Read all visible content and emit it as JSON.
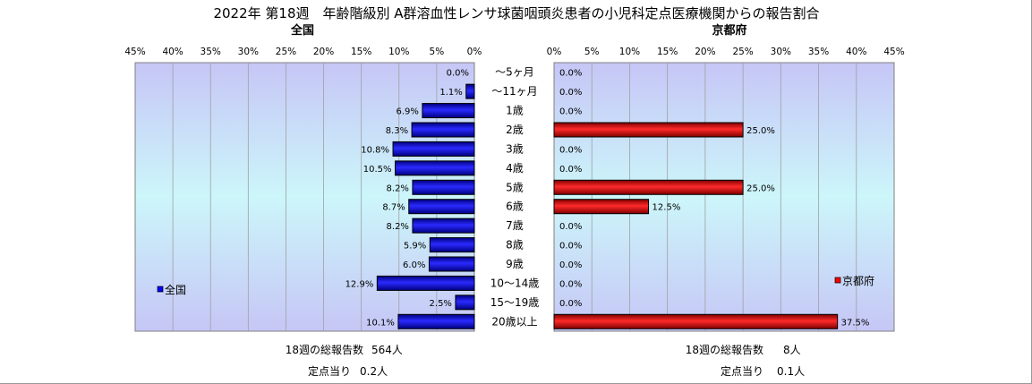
{
  "title": "2022年 第18週　年齢階級別 A群溶血性レンサ球菌咽頭炎患者の小児科定点医療機関からの報告割合",
  "colors": {
    "national_bar": "#0000ff",
    "kyoto_bar": "#ff0000"
  },
  "chart_data": [
    {
      "type": "bar",
      "orientation": "horizontal",
      "direction": "right-to-left",
      "subtitle": "全国",
      "categories": [
        "〜5ヶ月",
        "〜11ヶ月",
        "1歳",
        "2歳",
        "3歳",
        "4歳",
        "5歳",
        "6歳",
        "7歳",
        "8歳",
        "9歳",
        "10〜14歳",
        "15〜19歳",
        "20歳以上"
      ],
      "series": [
        {
          "name": "全国",
          "values": [
            0.0,
            1.1,
            6.9,
            8.3,
            10.8,
            10.5,
            8.2,
            8.7,
            8.2,
            5.9,
            6.0,
            12.9,
            2.5,
            10.1
          ]
        }
      ],
      "value_labels": [
        "0.0%",
        "1.1%",
        "6.9%",
        "8.3%",
        "10.8%",
        "10.5%",
        "8.2%",
        "8.7%",
        "8.2%",
        "5.9%",
        "6.0%",
        "12.9%",
        "2.5%",
        "10.1%"
      ],
      "xlim": [
        0,
        45
      ],
      "tick_labels": [
        "0%",
        "5%",
        "10%",
        "15%",
        "20%",
        "25%",
        "30%",
        "35%",
        "40%",
        "45%"
      ],
      "legend": "left",
      "grid": true
    },
    {
      "type": "bar",
      "orientation": "horizontal",
      "direction": "left-to-right",
      "subtitle": "京都府",
      "categories": [
        "〜5ヶ月",
        "〜11ヶ月",
        "1歳",
        "2歳",
        "3歳",
        "4歳",
        "5歳",
        "6歳",
        "7歳",
        "8歳",
        "9歳",
        "10〜14歳",
        "15〜19歳",
        "20歳以上"
      ],
      "series": [
        {
          "name": "京都府",
          "values": [
            0.0,
            0.0,
            0.0,
            25.0,
            0.0,
            0.0,
            25.0,
            12.5,
            0.0,
            0.0,
            0.0,
            0.0,
            0.0,
            37.5
          ]
        }
      ],
      "value_labels": [
        "0.0%",
        "0.0%",
        "0.0%",
        "25.0%",
        "0.0%",
        "0.0%",
        "25.0%",
        "12.5%",
        "0.0%",
        "0.0%",
        "0.0%",
        "0.0%",
        "0.0%",
        "37.5%"
      ],
      "xlim": [
        0,
        45
      ],
      "tick_labels": [
        "0%",
        "5%",
        "10%",
        "15%",
        "20%",
        "25%",
        "30%",
        "35%",
        "40%",
        "45%"
      ],
      "legend": "right",
      "grid": true
    }
  ],
  "footer": {
    "national_total_label": "18週の総報告数",
    "national_total_value": "564人",
    "national_per_label": "定点当り",
    "national_per_value": "0.2人",
    "kyoto_total_label": "18週の総報告数",
    "kyoto_total_value": "8人",
    "kyoto_per_label": "定点当り",
    "kyoto_per_value": "0.1人"
  }
}
